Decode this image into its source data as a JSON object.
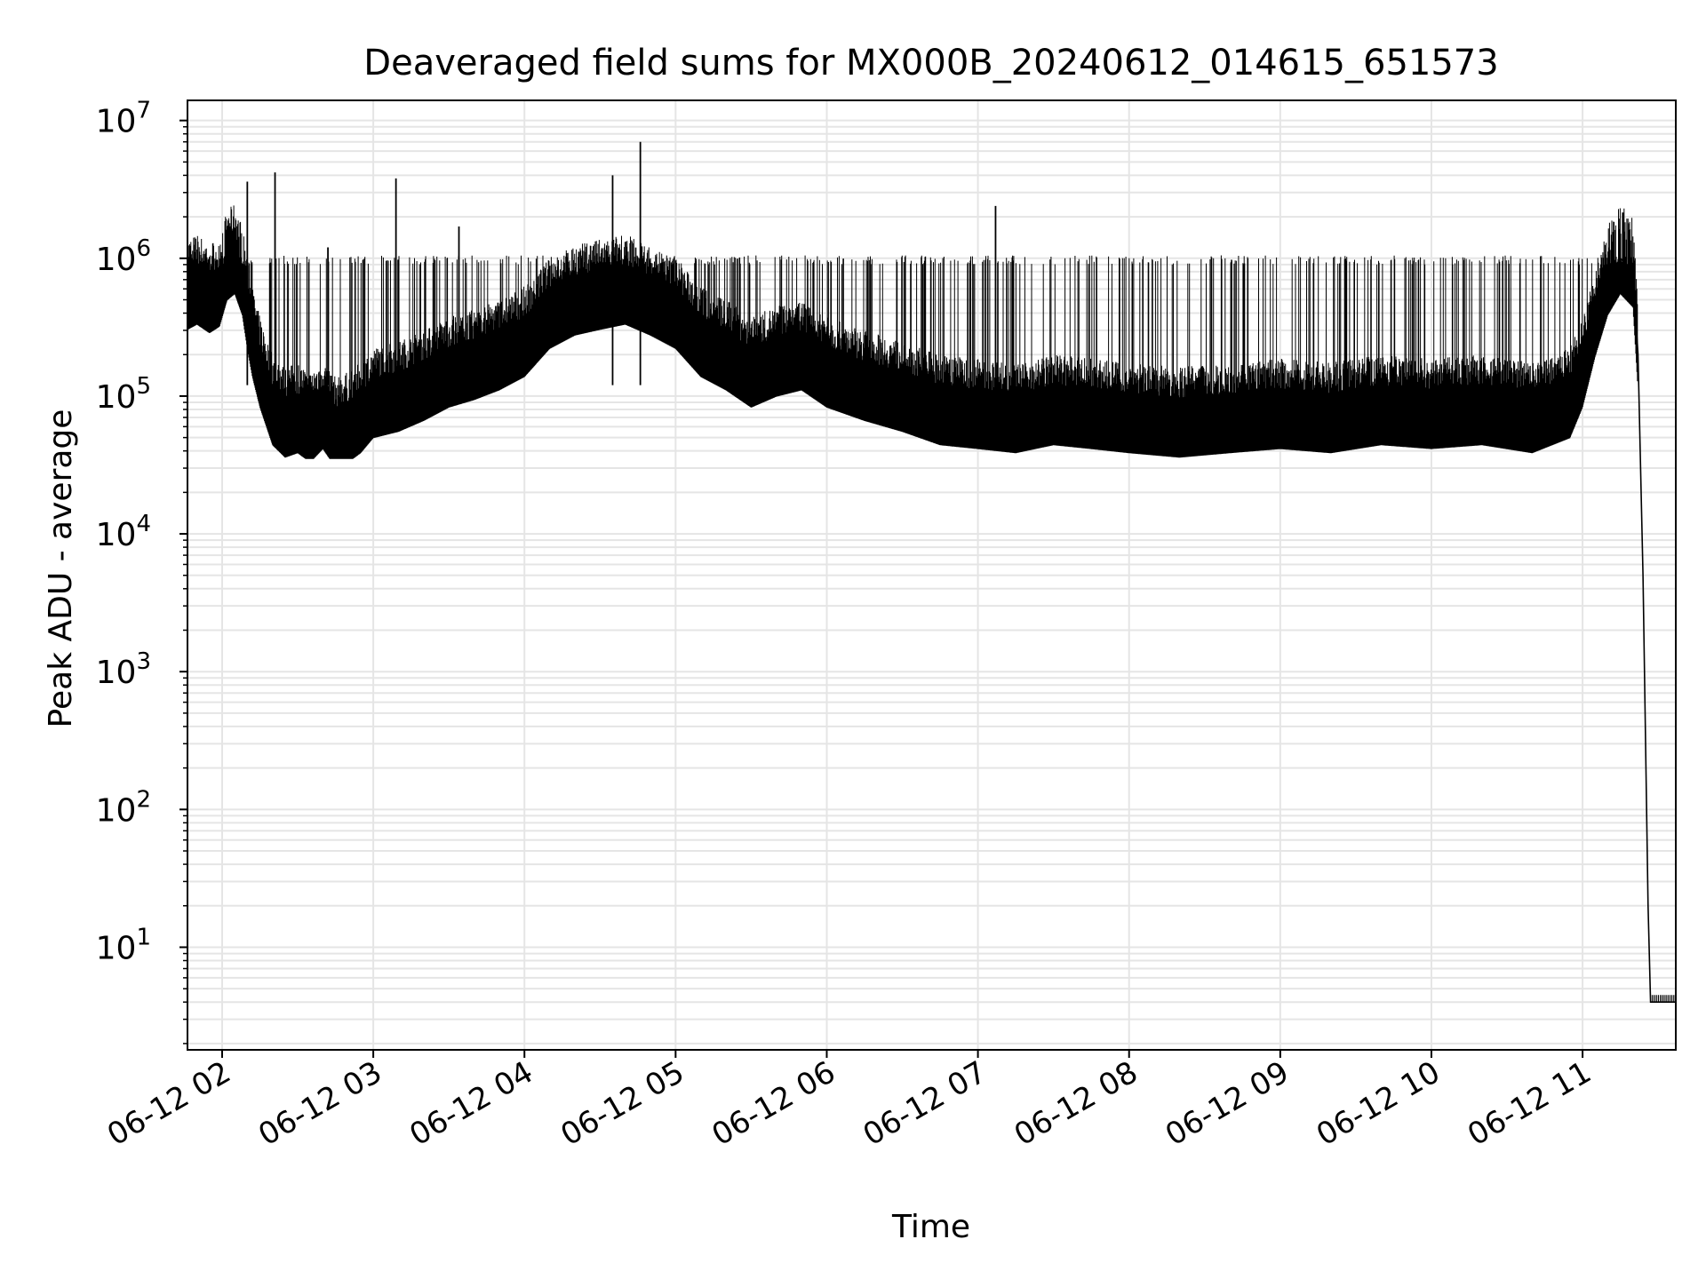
{
  "chart_data": {
    "type": "line",
    "title": "Deaveraged field sums for MX000B_20240612_014615_651573",
    "xlabel": "Time",
    "ylabel": "Peak ADU - average",
    "yscale": "log",
    "ylim": [
      1.8,
      14000000
    ],
    "xlim": [
      "2024-06-12T01:46:15",
      "2024-06-12T11:37:00"
    ],
    "grid": true,
    "colors": {
      "line": "#000000",
      "grid": "#e5e5e5"
    },
    "x_ticks": [
      {
        "value": "2024-06-12T02:00:00",
        "label": "06-12 02"
      },
      {
        "value": "2024-06-12T03:00:00",
        "label": "06-12 03"
      },
      {
        "value": "2024-06-12T04:00:00",
        "label": "06-12 04"
      },
      {
        "value": "2024-06-12T05:00:00",
        "label": "06-12 05"
      },
      {
        "value": "2024-06-12T06:00:00",
        "label": "06-12 06"
      },
      {
        "value": "2024-06-12T07:00:00",
        "label": "06-12 07"
      },
      {
        "value": "2024-06-12T08:00:00",
        "label": "06-12 08"
      },
      {
        "value": "2024-06-12T09:00:00",
        "label": "06-12 09"
      },
      {
        "value": "2024-06-12T10:00:00",
        "label": "06-12 10"
      },
      {
        "value": "2024-06-12T11:00:00",
        "label": "06-12 11"
      }
    ],
    "y_ticks": [
      {
        "value": 10,
        "base": "10",
        "exp": "1"
      },
      {
        "value": 100,
        "base": "10",
        "exp": "2"
      },
      {
        "value": 1000,
        "base": "10",
        "exp": "3"
      },
      {
        "value": 10000,
        "base": "10",
        "exp": "4"
      },
      {
        "value": 100000,
        "base": "10",
        "exp": "5"
      },
      {
        "value": 1000000,
        "base": "10",
        "exp": "6"
      },
      {
        "value": 10000000,
        "base": "10",
        "exp": "7"
      }
    ],
    "series": [
      {
        "x": [
          "2024-06-12T01:46:15",
          "2024-06-12T01:50:00",
          "2024-06-12T01:55:00",
          "2024-06-12T01:59:00",
          "2024-06-12T02:02:00",
          "2024-06-12T02:05:00",
          "2024-06-12T02:08:00",
          "2024-06-12T02:10:00",
          "2024-06-12T02:12:00",
          "2024-06-12T02:15:00",
          "2024-06-12T02:20:00",
          "2024-06-12T02:25:00",
          "2024-06-12T02:30:00",
          "2024-06-12T02:35:00",
          "2024-06-12T02:40:00",
          "2024-06-12T02:45:00",
          "2024-06-12T02:50:00",
          "2024-06-12T02:55:00",
          "2024-06-12T03:00:00",
          "2024-06-12T03:10:00",
          "2024-06-12T03:20:00",
          "2024-06-12T03:30:00",
          "2024-06-12T03:40:00",
          "2024-06-12T03:50:00",
          "2024-06-12T04:00:00",
          "2024-06-12T04:10:00",
          "2024-06-12T04:20:00",
          "2024-06-12T04:30:00",
          "2024-06-12T04:40:00",
          "2024-06-12T04:50:00",
          "2024-06-12T05:00:00",
          "2024-06-12T05:10:00",
          "2024-06-12T05:20:00",
          "2024-06-12T05:30:00",
          "2024-06-12T05:40:00",
          "2024-06-12T05:50:00",
          "2024-06-12T06:00:00",
          "2024-06-12T06:15:00",
          "2024-06-12T06:30:00",
          "2024-06-12T06:45:00",
          "2024-06-12T07:00:00",
          "2024-06-12T07:15:00",
          "2024-06-12T07:30:00",
          "2024-06-12T07:45:00",
          "2024-06-12T08:00:00",
          "2024-06-12T08:20:00",
          "2024-06-12T08:40:00",
          "2024-06-12T09:00:00",
          "2024-06-12T09:20:00",
          "2024-06-12T09:40:00",
          "2024-06-12T10:00:00",
          "2024-06-12T10:20:00",
          "2024-06-12T10:40:00",
          "2024-06-12T10:55:00",
          "2024-06-12T11:00:00",
          "2024-06-12T11:05:00",
          "2024-06-12T11:10:00",
          "2024-06-12T11:15:00",
          "2024-06-12T11:20:00",
          "2024-06-12T11:22:00",
          "2024-06-12T11:24:00",
          "2024-06-12T11:26:00",
          "2024-06-12T11:27:00",
          "2024-06-12T11:30:00",
          "2024-06-12T11:37:00"
        ],
        "y": [
          550000,
          600000,
          520000,
          580000,
          900000,
          1000000,
          700000,
          400000,
          250000,
          150000,
          80000,
          65000,
          70000,
          60000,
          75000,
          55000,
          60000,
          70000,
          90000,
          100000,
          120000,
          150000,
          170000,
          200000,
          250000,
          400000,
          500000,
          550000,
          600000,
          500000,
          400000,
          250000,
          200000,
          150000,
          180000,
          200000,
          150000,
          120000,
          100000,
          80000,
          75000,
          70000,
          80000,
          75000,
          70000,
          65000,
          70000,
          75000,
          70000,
          80000,
          75000,
          80000,
          70000,
          90000,
          150000,
          350000,
          700000,
          1000000,
          800000,
          200000,
          5000,
          20,
          4,
          4,
          4
        ]
      }
    ],
    "spikes": [
      {
        "x": "2024-06-12T02:10:00",
        "y": 3600000
      },
      {
        "x": "2024-06-12T02:21:00",
        "y": 4200000
      },
      {
        "x": "2024-06-12T02:42:00",
        "y": 1200000
      },
      {
        "x": "2024-06-12T03:09:00",
        "y": 3800000
      },
      {
        "x": "2024-06-12T03:34:00",
        "y": 1700000
      },
      {
        "x": "2024-06-12T04:35:00",
        "y": 4000000
      },
      {
        "x": "2024-06-12T04:46:00",
        "y": 7000000
      },
      {
        "x": "2024-06-12T07:07:00",
        "y": 2400000
      }
    ]
  }
}
